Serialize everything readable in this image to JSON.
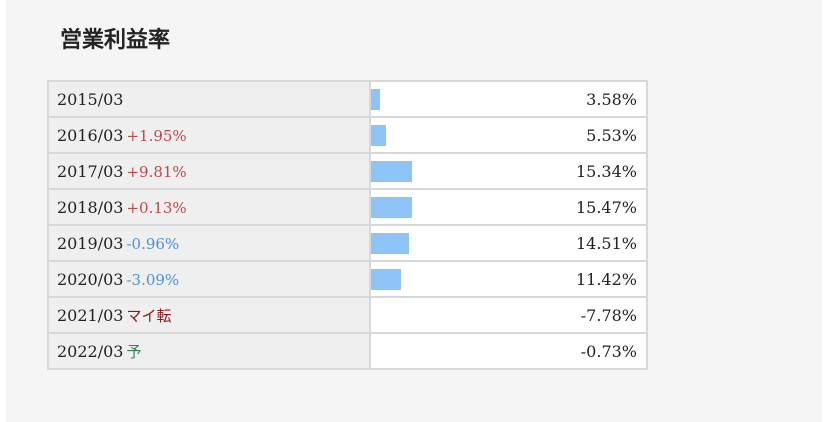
{
  "title": "営業利益率",
  "rows": [
    {
      "period": "2015/03",
      "value": 3.58,
      "value_label": "3.58%"
    },
    {
      "period": "2016/03",
      "change": "+1.95%",
      "change_color": "#b94a48",
      "value": 5.53,
      "value_label": "5.53%"
    },
    {
      "period": "2017/03",
      "change": "+9.81%",
      "change_color": "#b94a48",
      "value": 15.34,
      "value_label": "15.34%"
    },
    {
      "period": "2018/03",
      "change": "+0.13%",
      "change_color": "#b94a48",
      "value": 15.47,
      "value_label": "15.47%"
    },
    {
      "period": "2019/03",
      "change": "-0.96%",
      "change_color": "#4a90d9",
      "value": 14.51,
      "value_label": "14.51%"
    },
    {
      "period": "2020/03",
      "change": "-3.09%",
      "change_color": "#4a90d9",
      "value": 11.42,
      "value_label": "11.42%"
    },
    {
      "period": "2021/03",
      "change": "マイ転",
      "change_color": "#8b1a1a",
      "value": -7.78,
      "value_label": "-7.78%"
    },
    {
      "period": "2022/03",
      "change": "予",
      "change_color": "#3a7a50",
      "value": -0.73,
      "value_label": "-0.73%"
    }
  ],
  "bar_color": "#8ec4f6"
}
